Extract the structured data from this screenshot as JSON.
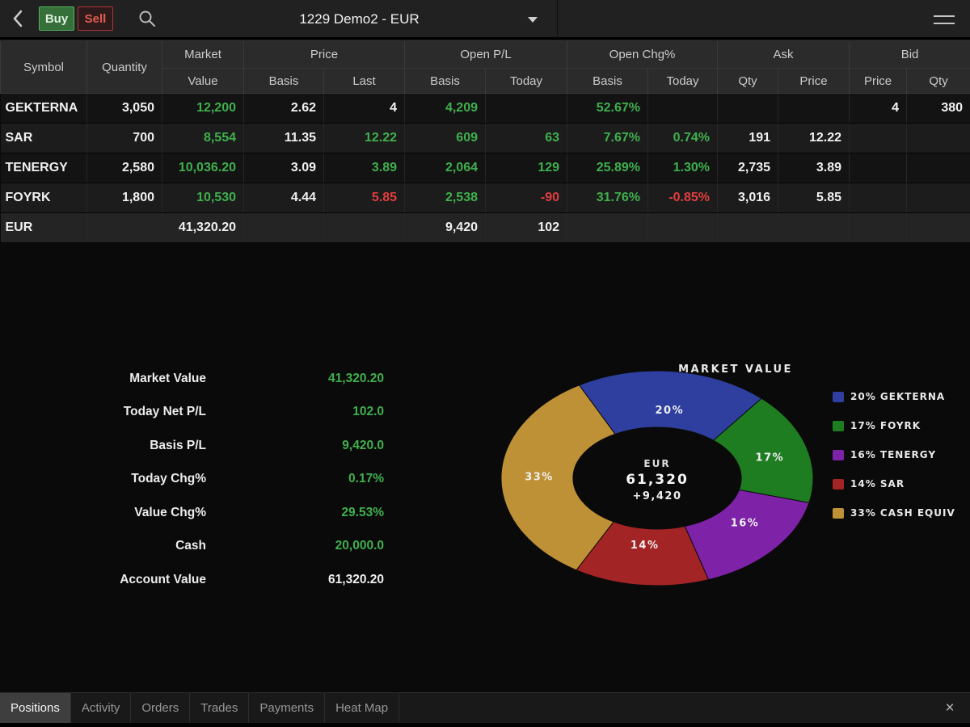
{
  "topbar": {
    "buy_label": "Buy",
    "sell_label": "Sell",
    "account_title": "1229 Demo2 - EUR"
  },
  "table": {
    "header": {
      "symbol": "Symbol",
      "quantity": "Quantity",
      "market": "Market",
      "market_sub": "Value",
      "price": "Price",
      "price_sub": [
        "Basis",
        "Last"
      ],
      "openpl": "Open P/L",
      "openpl_sub": [
        "Basis",
        "Today"
      ],
      "openchg": "Open Chg%",
      "openchg_sub": [
        "Basis",
        "Today"
      ],
      "ask": "Ask",
      "ask_sub": [
        "Qty",
        "Price"
      ],
      "bid": "Bid",
      "bid_sub": [
        "Price",
        "Qty"
      ]
    },
    "rows": [
      {
        "symbol": "GEKTERNA",
        "cells": [
          [
            "GEKTERNA",
            "w"
          ],
          [
            "3,050",
            "w"
          ],
          [
            "12,200",
            "g"
          ],
          [
            "2.62",
            "w"
          ],
          [
            "4",
            "w"
          ],
          [
            "4,209",
            "g"
          ],
          [
            "",
            ""
          ],
          [
            "52.67%",
            "g"
          ],
          [
            "",
            ""
          ],
          [
            "",
            ""
          ],
          [
            "",
            ""
          ],
          [
            "4",
            "w"
          ],
          [
            "380",
            "w"
          ]
        ]
      },
      {
        "symbol": "SAR",
        "cells": [
          [
            "SAR",
            "w"
          ],
          [
            "700",
            "w"
          ],
          [
            "8,554",
            "g"
          ],
          [
            "11.35",
            "w"
          ],
          [
            "12.22",
            "g"
          ],
          [
            "609",
            "g"
          ],
          [
            "63",
            "g"
          ],
          [
            "7.67%",
            "g"
          ],
          [
            "0.74%",
            "g"
          ],
          [
            "191",
            "w"
          ],
          [
            "12.22",
            "w"
          ],
          [
            "",
            ""
          ],
          [
            "",
            ""
          ]
        ]
      },
      {
        "symbol": "TENERGY",
        "cells": [
          [
            "TENERGY",
            "w"
          ],
          [
            "2,580",
            "w"
          ],
          [
            "10,036.20",
            "g"
          ],
          [
            "3.09",
            "w"
          ],
          [
            "3.89",
            "g"
          ],
          [
            "2,064",
            "g"
          ],
          [
            "129",
            "g"
          ],
          [
            "25.89%",
            "g"
          ],
          [
            "1.30%",
            "g"
          ],
          [
            "2,735",
            "w"
          ],
          [
            "3.89",
            "w"
          ],
          [
            "",
            ""
          ],
          [
            "",
            ""
          ]
        ]
      },
      {
        "symbol": "FOYRK",
        "cells": [
          [
            "FOYRK",
            "w"
          ],
          [
            "1,800",
            "w"
          ],
          [
            "10,530",
            "g"
          ],
          [
            "4.44",
            "w"
          ],
          [
            "5.85",
            "r"
          ],
          [
            "2,538",
            "g"
          ],
          [
            "-90",
            "r"
          ],
          [
            "31.76%",
            "g"
          ],
          [
            "-0.85%",
            "r"
          ],
          [
            "3,016",
            "w"
          ],
          [
            "5.85",
            "w"
          ],
          [
            "",
            ""
          ],
          [
            "",
            ""
          ]
        ]
      },
      {
        "symbol": "EUR",
        "summary": true,
        "cells": [
          [
            "EUR",
            "w"
          ],
          [
            "",
            ""
          ],
          [
            "41,320.20",
            "w"
          ],
          [
            "",
            ""
          ],
          [
            "",
            ""
          ],
          [
            "9,420",
            "w"
          ],
          [
            "102",
            "w"
          ],
          [
            "",
            ""
          ],
          [
            "",
            ""
          ],
          [
            "",
            ""
          ],
          [
            "",
            ""
          ],
          [
            "",
            ""
          ],
          [
            "",
            ""
          ]
        ]
      }
    ]
  },
  "summary": {
    "rows": [
      {
        "label": "Market Value",
        "value": "41,320.20",
        "color": "g"
      },
      {
        "label": "Today Net P/L",
        "value": "102.0",
        "color": "g"
      },
      {
        "label": "Basis P/L",
        "value": "9,420.0",
        "color": "g"
      },
      {
        "label": "Today Chg%",
        "value": "0.17%",
        "color": "g"
      },
      {
        "label": "Value Chg%",
        "value": "29.53%",
        "color": "g"
      },
      {
        "label": "Cash",
        "value": "20,000.0",
        "color": "g"
      },
      {
        "label": "Account Value",
        "value": "61,320.20",
        "color": "w"
      }
    ]
  },
  "chart_data": {
    "type": "pie",
    "title": "MARKET VALUE",
    "legend_position": "right",
    "start_angle_deg": -30,
    "center": {
      "currency": "EUR",
      "value": "61,320",
      "change": "+9,420"
    },
    "slices": [
      {
        "label": "GEKTERNA",
        "pct": 20,
        "color": "#2e3f9f"
      },
      {
        "label": "FOYRK",
        "pct": 17,
        "color": "#1f7d21"
      },
      {
        "label": "TENERGY",
        "pct": 16,
        "color": "#7e22a8"
      },
      {
        "label": "SAR",
        "pct": 14,
        "color": "#a32424"
      },
      {
        "label": "CASH EQUIV",
        "pct": 33,
        "color": "#bf9136"
      }
    ]
  },
  "tabs": {
    "items": [
      {
        "label": "Positions",
        "active": true
      },
      {
        "label": "Activity",
        "active": false
      },
      {
        "label": "Orders",
        "active": false
      },
      {
        "label": "Trades",
        "active": false
      },
      {
        "label": "Payments",
        "active": false
      },
      {
        "label": "Heat Map",
        "active": false
      }
    ],
    "close_icon": "×"
  },
  "colors": {
    "positive": "#3fb04d",
    "negative": "#e23e3e",
    "neutral": "#f1f1f1"
  }
}
